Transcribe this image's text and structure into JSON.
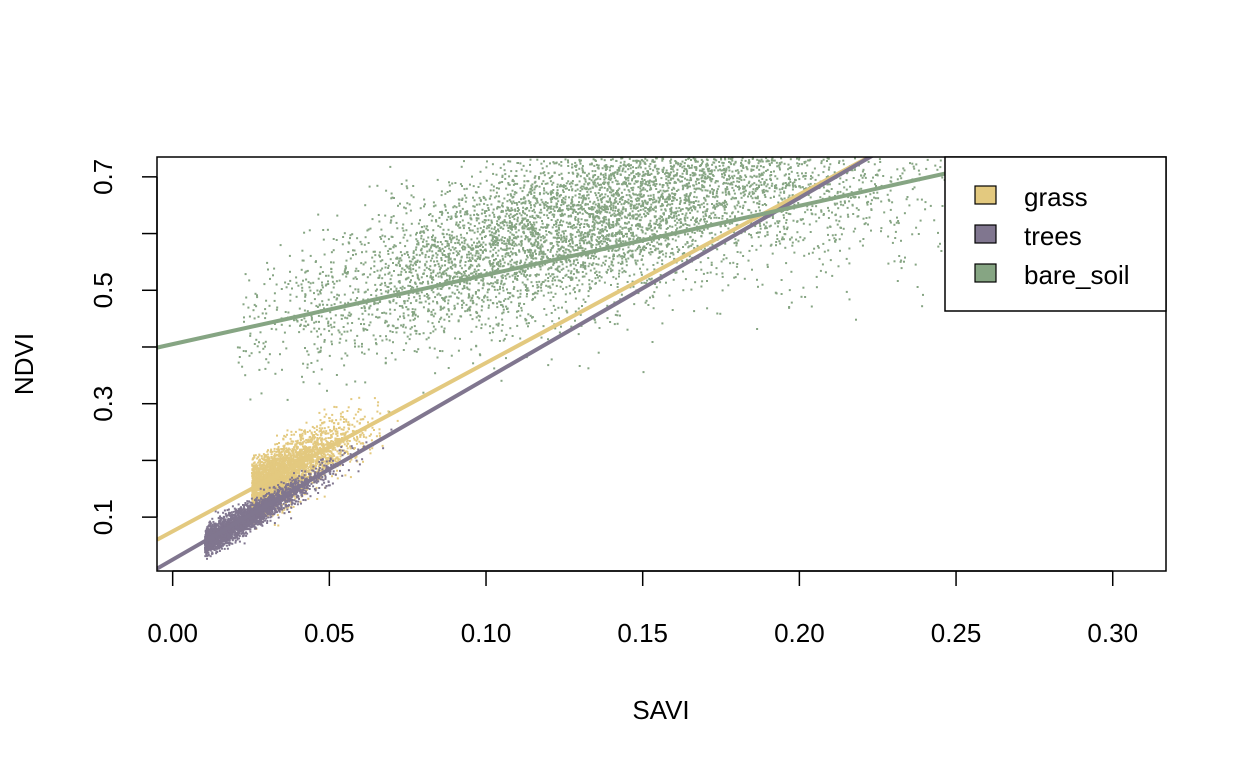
{
  "chart_data": {
    "type": "scatter",
    "title": "",
    "xlabel": "SAVI",
    "ylabel": "NDVI",
    "xlim": [
      -0.005,
      0.317
    ],
    "ylim": [
      0.005,
      0.735
    ],
    "x_ticks": [
      0.0,
      0.05,
      0.1,
      0.15,
      0.2,
      0.25,
      0.3
    ],
    "x_tick_labels": [
      "0.00",
      "0.05",
      "0.10",
      "0.15",
      "0.20",
      "0.25",
      "0.30"
    ],
    "y_ticks": [
      0.1,
      0.2,
      0.3,
      0.4,
      0.5,
      0.6,
      0.7
    ],
    "y_tick_labels": [
      "0.1",
      "",
      "0.3",
      "",
      "0.5",
      "",
      "0.7"
    ],
    "grid": false,
    "legend_position": "top-right",
    "series": [
      {
        "name": "grass",
        "color": "#e3c97f",
        "point_cloud": {
          "x_range": [
            0.015,
            0.095
          ],
          "center": [
            0.045,
            0.25
          ],
          "spread_along": 0.012,
          "spread_across": 0.025
        },
        "fit_line": {
          "intercept": 0.075,
          "slope": 2.97
        }
      },
      {
        "name": "trees",
        "color": "#80768f",
        "point_cloud": {
          "x_range": [
            0.0,
            0.1
          ],
          "center": [
            0.04,
            0.18
          ],
          "spread_along": 0.014,
          "spread_across": 0.012
        },
        "fit_line": {
          "intercept": 0.025,
          "slope": 3.19
        }
      },
      {
        "name": "bare_soil",
        "color": "#86a583",
        "point_cloud": {
          "x_range": [
            0.02,
            0.317
          ],
          "center": [
            0.14,
            0.56
          ],
          "spread_along": 0.05,
          "spread_across": 0.09
        },
        "fit_line": {
          "intercept": 0.405,
          "slope": 1.22
        }
      }
    ]
  }
}
